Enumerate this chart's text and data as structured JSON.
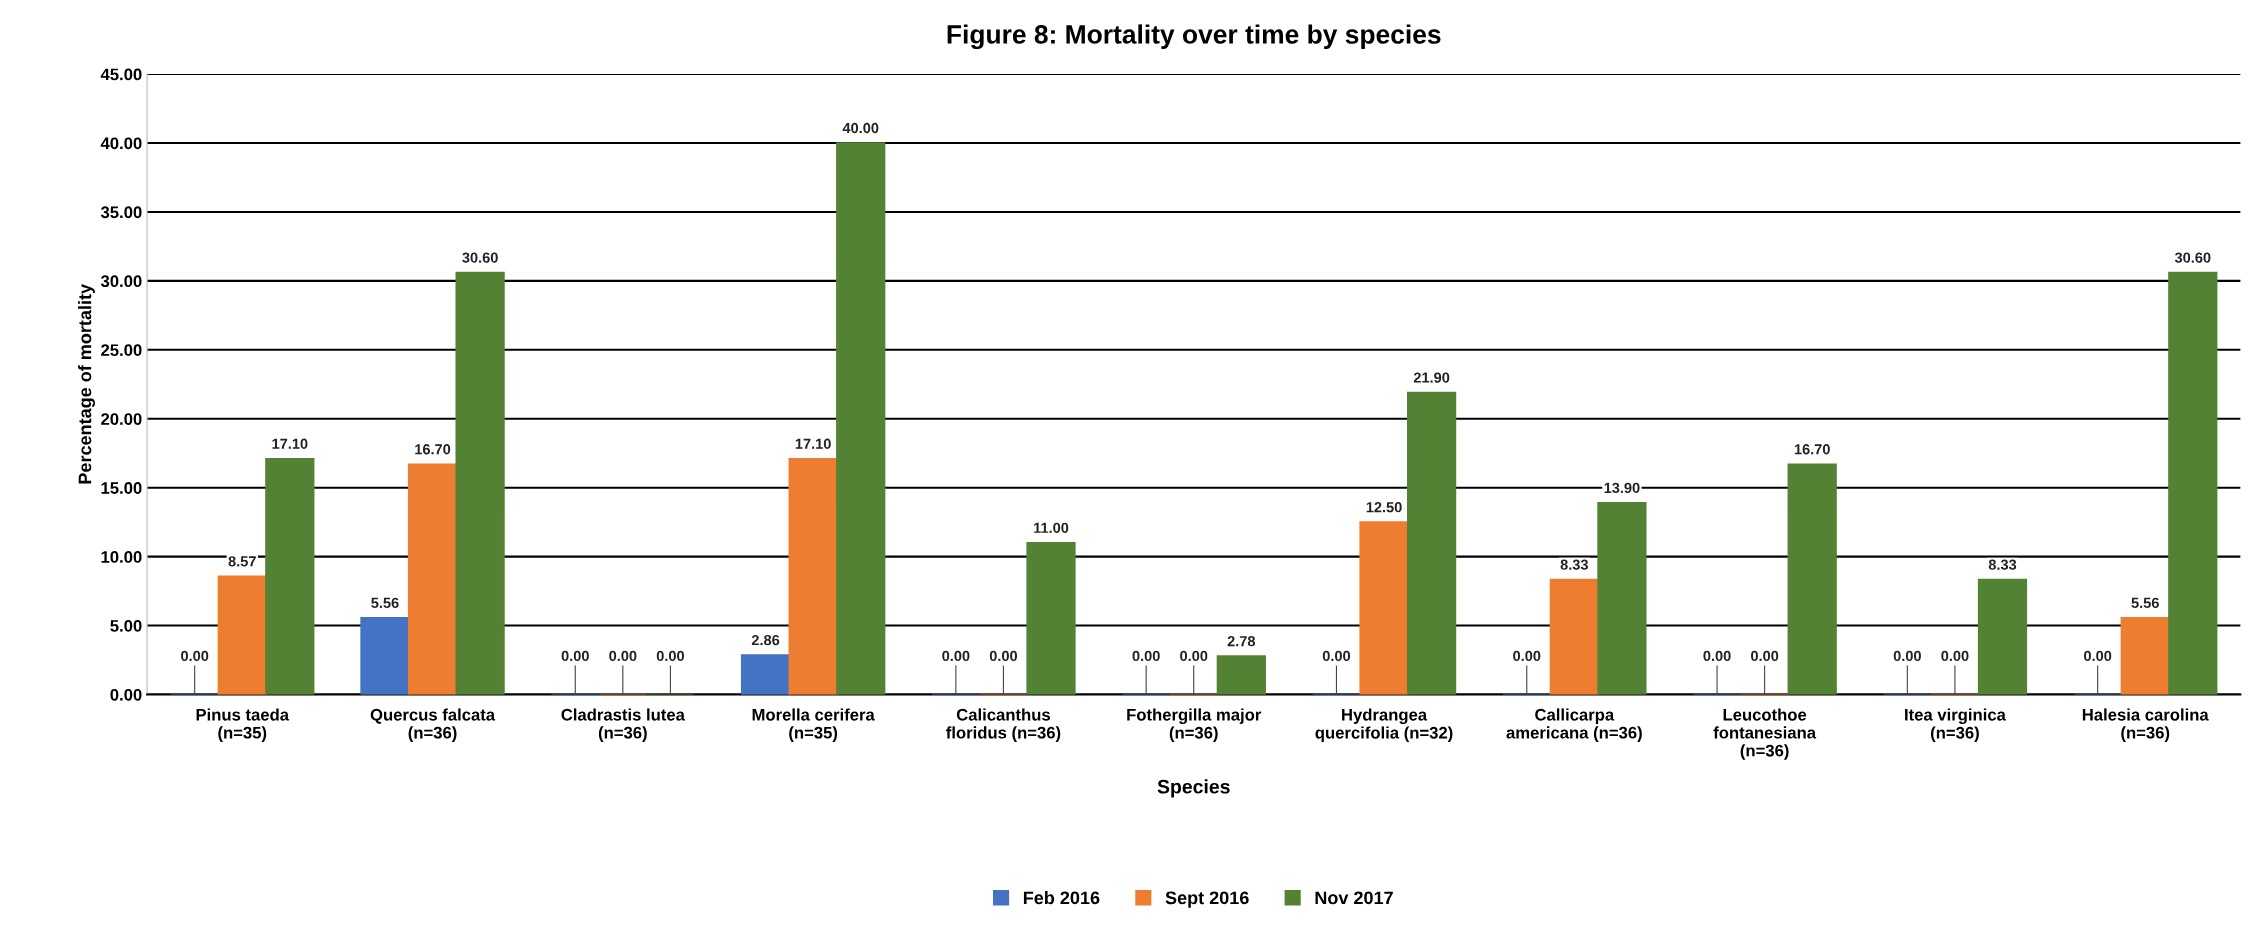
{
  "chart_data": {
    "type": "bar",
    "title": "Figure 8: Mortality over time by species",
    "xlabel": "Species",
    "ylabel": "Percentage of mortality",
    "categories": [
      "Pinus taeda\n(n=35)",
      "Quercus falcata\n(n=36)",
      "Cladrastis lutea\n(n=36)",
      "Morella cerifera\n(n=35)",
      "Calicanthus\nfloridus (n=36)",
      "Fothergilla major\n(n=36)",
      "Hydrangea\nquercifolia (n=32)",
      "Callicarpa\namericana (n=36)",
      "Leucothoe\nfontanesiana\n(n=36)",
      "Itea virginica\n(n=36)",
      "Halesia carolina\n(n=36)"
    ],
    "series": [
      {
        "name": "Feb 2016",
        "color": "#4472c4",
        "values": [
          0,
          5.56,
          0,
          2.86,
          0,
          0,
          0,
          0,
          0,
          0,
          0
        ],
        "value_labels": [
          "0.00",
          "5.56",
          "0.00",
          "2.86",
          "0.00",
          "0.00",
          "0.00",
          "0.00",
          "0.00",
          "0.00",
          "0.00"
        ]
      },
      {
        "name": "Sept 2016",
        "color": "#ed7d31",
        "values": [
          8.57,
          16.7,
          0,
          17.1,
          0,
          0,
          12.5,
          8.33,
          0,
          0,
          5.56
        ],
        "value_labels": [
          "8.57",
          "16.70",
          "0.00",
          "17.10",
          "0.00",
          "0.00",
          "12.50",
          "8.33",
          "0.00",
          "0.00",
          "5.56"
        ]
      },
      {
        "name": "Nov 2017",
        "color": "#548235",
        "values": [
          17.1,
          30.6,
          0,
          40.0,
          11.0,
          2.78,
          21.9,
          13.9,
          16.7,
          8.33,
          30.6
        ],
        "value_labels": [
          "17.10",
          "30.60",
          "0.00",
          "40.00",
          "11.00",
          "2.78",
          "21.90",
          "13.90",
          "16.70",
          "8.33",
          "30.60"
        ]
      }
    ],
    "ylim": [
      0,
      45
    ],
    "yticks": [
      {
        "value": 0,
        "label": "0.00"
      },
      {
        "value": 5,
        "label": "5.00"
      },
      {
        "value": 10,
        "label": "10.00"
      },
      {
        "value": 15,
        "label": "15.00"
      },
      {
        "value": 20,
        "label": "20.00"
      },
      {
        "value": 25,
        "label": "25.00"
      },
      {
        "value": 30,
        "label": "30.00"
      },
      {
        "value": 35,
        "label": "35.00"
      },
      {
        "value": 40,
        "label": "40.00"
      },
      {
        "value": 45,
        "label": "45.00"
      }
    ],
    "grid": "y",
    "legend": "bottom"
  }
}
